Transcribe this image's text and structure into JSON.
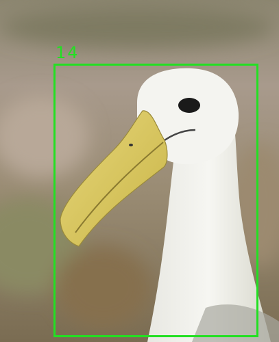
{
  "annotations": [
    {
      "label": "14"
    }
  ]
}
